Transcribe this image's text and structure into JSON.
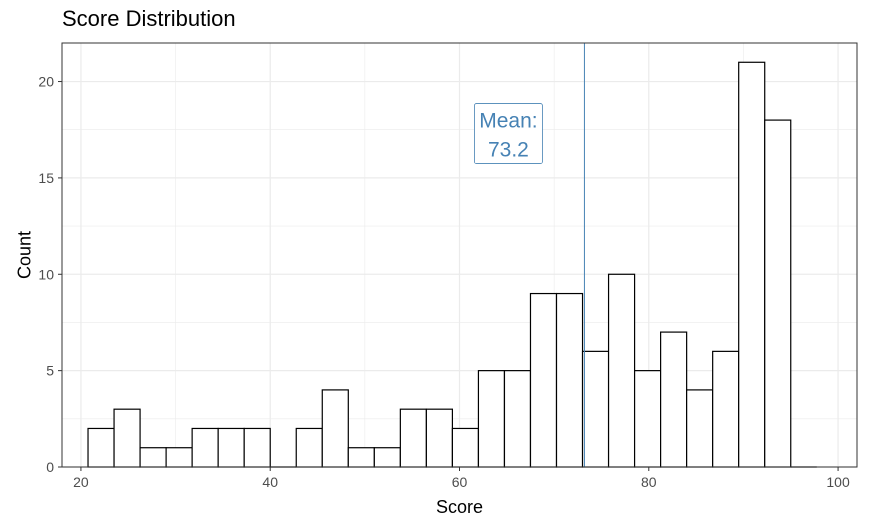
{
  "chart_data": {
    "type": "bar",
    "title": "Score Distribution",
    "xlabel": "Score",
    "ylabel": "Count",
    "xlim": [
      18,
      102
    ],
    "ylim": [
      0,
      22
    ],
    "x_ticks": [
      20,
      40,
      60,
      80,
      100
    ],
    "y_ticks": [
      0,
      5,
      10,
      15,
      20
    ],
    "grid": true,
    "bins": [
      {
        "x_start": 20.75,
        "x_end": 23.5,
        "count": 2
      },
      {
        "x_start": 23.5,
        "x_end": 26.25,
        "count": 3
      },
      {
        "x_start": 26.25,
        "x_end": 29.0,
        "count": 1
      },
      {
        "x_start": 29.0,
        "x_end": 31.75,
        "count": 1
      },
      {
        "x_start": 31.75,
        "x_end": 34.5,
        "count": 2
      },
      {
        "x_start": 34.5,
        "x_end": 37.25,
        "count": 2
      },
      {
        "x_start": 37.25,
        "x_end": 40.0,
        "count": 2
      },
      {
        "x_start": 40.0,
        "x_end": 42.75,
        "count": 0
      },
      {
        "x_start": 42.75,
        "x_end": 45.5,
        "count": 2
      },
      {
        "x_start": 45.5,
        "x_end": 48.25,
        "count": 4
      },
      {
        "x_start": 48.25,
        "x_end": 51.0,
        "count": 1
      },
      {
        "x_start": 51.0,
        "x_end": 53.75,
        "count": 1
      },
      {
        "x_start": 53.75,
        "x_end": 56.5,
        "count": 3
      },
      {
        "x_start": 56.5,
        "x_end": 59.25,
        "count": 3
      },
      {
        "x_start": 59.25,
        "x_end": 62.0,
        "count": 2
      },
      {
        "x_start": 62.0,
        "x_end": 64.75,
        "count": 5
      },
      {
        "x_start": 64.75,
        "x_end": 67.5,
        "count": 5
      },
      {
        "x_start": 67.5,
        "x_end": 70.25,
        "count": 9
      },
      {
        "x_start": 70.25,
        "x_end": 73.0,
        "count": 9
      },
      {
        "x_start": 73.0,
        "x_end": 75.75,
        "count": 6
      },
      {
        "x_start": 75.75,
        "x_end": 78.5,
        "count": 10
      },
      {
        "x_start": 78.5,
        "x_end": 81.25,
        "count": 5
      },
      {
        "x_start": 81.25,
        "x_end": 84.0,
        "count": 7
      },
      {
        "x_start": 84.0,
        "x_end": 86.75,
        "count": 4
      },
      {
        "x_start": 86.75,
        "x_end": 89.5,
        "count": 6
      },
      {
        "x_start": 89.5,
        "x_end": 92.25,
        "count": 21
      },
      {
        "x_start": 92.25,
        "x_end": 95.0,
        "count": 18
      },
      {
        "x_start": 95.0,
        "x_end": 97.75,
        "count": 0
      }
    ],
    "mean": {
      "value": 73.2,
      "label_line1": "Mean:",
      "label_line2": "73.2",
      "label_y": 17.3,
      "color": "#4682b4"
    },
    "colors": {
      "bar_fill": "#ffffff",
      "bar_stroke": "#000000",
      "grid": "#ebebeb",
      "panel_border": "#333333"
    }
  }
}
